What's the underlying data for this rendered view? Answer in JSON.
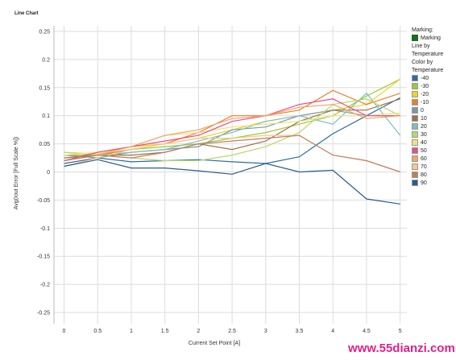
{
  "chart_data": {
    "type": "line",
    "title": "Line Chart",
    "xlabel": "Current Set Point [A]",
    "ylabel": "Avg(Iout Error [Full Scale %])",
    "x": [
      0,
      0.5,
      1,
      1.5,
      2,
      2.5,
      3,
      3.5,
      4,
      4.5,
      5
    ],
    "x_tick_labels": [
      "0",
      "0.5",
      "1",
      "1.5",
      "2",
      "2.5",
      "3",
      "3.5",
      "4",
      "4.5",
      "5"
    ],
    "y_ticks": [
      "0.25",
      "0.2",
      "0.15",
      "0.1",
      "0.05",
      "0",
      "-0.05",
      "-0.1",
      "-0.15",
      "-0.2",
      "-0.25"
    ],
    "ylim": [
      -0.27,
      0.26
    ],
    "grid": true,
    "legend_position": "right",
    "series": [
      {
        "name": "-40",
        "color": "#2e6da4",
        "values": [
          0.015,
          0.025,
          0.018,
          0.02,
          0.022,
          0.018,
          0.015,
          0.027,
          0.068,
          0.1,
          0.132
        ]
      },
      {
        "name": "-30",
        "color": "#9acd32",
        "values": [
          0.03,
          0.03,
          0.04,
          0.045,
          0.05,
          0.06,
          0.07,
          0.085,
          0.1,
          0.135,
          0.165
        ]
      },
      {
        "name": "-20",
        "color": "#f2d024",
        "values": [
          0.035,
          0.032,
          0.045,
          0.05,
          0.06,
          0.075,
          0.09,
          0.1,
          0.11,
          0.12,
          0.165
        ]
      },
      {
        "name": "-10",
        "color": "#e8822a",
        "values": [
          0.02,
          0.03,
          0.04,
          0.05,
          0.07,
          0.1,
          0.1,
          0.11,
          0.145,
          0.12,
          0.14
        ]
      },
      {
        "name": "0",
        "color": "#7a9aa8",
        "values": [
          0.03,
          0.025,
          0.035,
          0.04,
          0.045,
          0.075,
          0.08,
          0.1,
          0.11,
          0.1,
          0.1
        ]
      },
      {
        "name": "10",
        "color": "#a0704a",
        "values": [
          0.025,
          0.03,
          0.03,
          0.035,
          0.05,
          0.04,
          0.055,
          0.09,
          0.11,
          0.11,
          0.13
        ]
      },
      {
        "name": "20",
        "color": "#7fbfbf",
        "values": [
          0.02,
          0.03,
          0.035,
          0.04,
          0.055,
          0.07,
          0.09,
          0.1,
          0.085,
          0.14,
          0.065
        ]
      },
      {
        "name": "30",
        "color": "#b8d86a",
        "values": [
          0.035,
          0.03,
          0.025,
          0.02,
          0.02,
          0.03,
          0.045,
          0.07,
          0.12,
          0.13,
          0.1
        ]
      },
      {
        "name": "40",
        "color": "#f5e07a",
        "values": [
          0.03,
          0.035,
          0.045,
          0.065,
          0.07,
          0.08,
          0.085,
          0.09,
          0.1,
          0.1,
          0.105
        ]
      },
      {
        "name": "50",
        "color": "#e84d8a",
        "values": [
          0.02,
          0.035,
          0.045,
          0.055,
          0.065,
          0.09,
          0.1,
          0.12,
          0.13,
          0.1,
          0.1
        ]
      },
      {
        "name": "60",
        "color": "#f4a460",
        "values": [
          0.02,
          0.03,
          0.045,
          0.065,
          0.075,
          0.095,
          0.1,
          0.115,
          0.12,
          0.095,
          0.1
        ]
      },
      {
        "name": "70",
        "color": "#f5c98a",
        "values": [
          0.01,
          0.025,
          0.04,
          0.05,
          0.06,
          0.06,
          0.065,
          0.065,
          0.03,
          0.02,
          0.0
        ]
      },
      {
        "name": "80",
        "color": "#c08060",
        "values": [
          0.02,
          0.03,
          0.025,
          0.035,
          0.05,
          0.055,
          0.06,
          0.065,
          0.03,
          0.02,
          0.0
        ]
      },
      {
        "name": "90",
        "color": "#2a5d8f",
        "values": [
          0.01,
          0.022,
          0.007,
          0.007,
          0.002,
          -0.004,
          0.015,
          0.0,
          0.003,
          -0.048,
          -0.057
        ]
      }
    ]
  },
  "legend": {
    "marking_title": "Marking:",
    "marking_item": "Marking",
    "marking_color": "#1f6b1f",
    "line_by_title": "Line by",
    "line_by_value": "Temperature",
    "color_by_title": "Color by",
    "color_by_value": "Temperature"
  },
  "watermark": "www.55dianzi.com"
}
